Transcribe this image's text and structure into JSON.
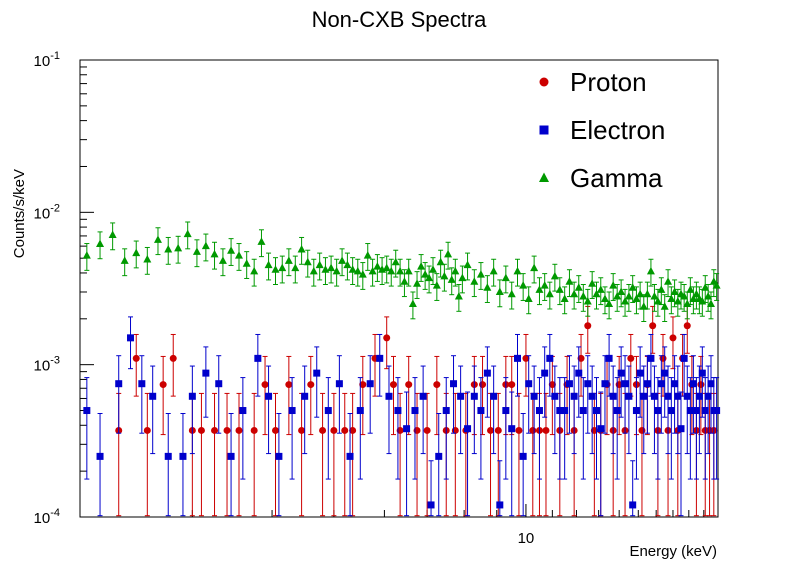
{
  "chart_data": {
    "type": "scatter",
    "title": "Non-CXB Spectra",
    "xlabel": "Energy (keV)",
    "ylabel": "Counts/s/keV",
    "xscale": "log",
    "yscale": "log",
    "xlim": [
      2.0,
      20.0
    ],
    "ylim": [
      0.0001,
      0.1
    ],
    "x_tick_labels": [
      "10"
    ],
    "y_tick_labels": [
      {
        "base": "10",
        "exp": "-4"
      },
      {
        "base": "10",
        "exp": "-3"
      },
      {
        "base": "10",
        "exp": "-2"
      },
      {
        "base": "10",
        "exp": "-1"
      }
    ],
    "legend_position": "top-right",
    "grid": false,
    "series": [
      {
        "name": "Proton",
        "color": "#cc0000",
        "marker": "circle",
        "x": [
          2.3,
          2.45,
          2.55,
          2.7,
          2.8,
          3.0,
          3.1,
          3.25,
          3.4,
          3.55,
          3.75,
          3.9,
          4.05,
          4.25,
          4.45,
          4.6,
          4.8,
          5.0,
          5.2,
          5.35,
          5.55,
          5.8,
          6.05,
          6.2,
          6.35,
          6.55,
          6.75,
          7.0,
          7.25,
          7.5,
          7.75,
          8.05,
          8.3,
          8.55,
          8.8,
          9.05,
          9.3,
          9.5,
          9.75,
          10.0,
          10.25,
          10.5,
          10.75,
          11.0,
          11.3,
          11.6,
          11.9,
          12.2,
          12.5,
          12.8,
          13.1,
          13.4,
          13.7,
          14.0,
          14.3,
          14.6,
          14.9,
          15.2,
          15.5,
          15.8,
          16.1,
          16.4,
          16.7,
          17.0,
          17.3,
          17.6,
          17.9,
          18.2,
          18.5,
          18.8,
          19.1,
          19.4,
          19.7
        ],
        "y": [
          0.00037,
          0.0011,
          0.00037,
          0.00074,
          0.0011,
          0.00037,
          0.00037,
          0.00037,
          0.00037,
          0.00037,
          0.00037,
          0.00074,
          0.00037,
          0.00074,
          0.00037,
          0.00074,
          0.00037,
          0.00037,
          0.00037,
          0.00037,
          0.00074,
          0.0011,
          0.0015,
          0.00074,
          0.00037,
          0.00074,
          0.00037,
          0.00037,
          0.00074,
          0.00037,
          0.00037,
          0.00037,
          0.00074,
          0.00074,
          0.00037,
          0.00037,
          0.00074,
          0.00074,
          0.00037,
          0.0011,
          0.00037,
          0.00037,
          0.00037,
          0.00074,
          0.00037,
          0.00074,
          0.00037,
          0.0011,
          0.0018,
          0.00037,
          0.00037,
          0.00074,
          0.00037,
          0.00074,
          0.00037,
          0.0011,
          0.00074,
          0.00037,
          0.00074,
          0.0018,
          0.00037,
          0.0011,
          0.00037,
          0.0015,
          0.00037,
          0.0011,
          0.0018,
          0.00074,
          0.00037,
          0.00074,
          0.00037,
          0.00037,
          0.00037
        ]
      },
      {
        "name": "Electron",
        "color": "#0000cc",
        "marker": "square",
        "x": [
          2.05,
          2.15,
          2.3,
          2.4,
          2.5,
          2.6,
          2.75,
          2.9,
          3.0,
          3.15,
          3.3,
          3.45,
          3.6,
          3.8,
          3.95,
          4.1,
          4.3,
          4.5,
          4.7,
          4.9,
          5.1,
          5.3,
          5.5,
          5.7,
          5.9,
          6.1,
          6.3,
          6.5,
          6.7,
          6.9,
          7.1,
          7.3,
          7.5,
          7.7,
          7.9,
          8.1,
          8.3,
          8.5,
          8.7,
          8.9,
          9.1,
          9.3,
          9.5,
          9.7,
          9.9,
          10.1,
          10.3,
          10.5,
          10.7,
          10.9,
          11.1,
          11.3,
          11.5,
          11.7,
          11.9,
          12.1,
          12.3,
          12.5,
          12.7,
          12.9,
          13.1,
          13.3,
          13.5,
          13.7,
          13.9,
          14.1,
          14.3,
          14.5,
          14.7,
          14.9,
          15.1,
          15.3,
          15.5,
          15.7,
          15.9,
          16.1,
          16.3,
          16.5,
          16.7,
          16.9,
          17.1,
          17.3,
          17.5,
          17.7,
          17.9,
          18.1,
          18.3,
          18.5,
          18.7,
          18.9,
          19.1,
          19.3,
          19.5,
          19.7,
          19.9
        ],
        "y": [
          0.0005,
          0.00025,
          0.00075,
          0.0015,
          0.00075,
          0.00062,
          0.00025,
          0.00025,
          0.00062,
          0.00088,
          0.00075,
          0.00025,
          0.0005,
          0.0011,
          0.00062,
          0.00025,
          0.0005,
          0.00062,
          0.00088,
          0.0005,
          0.00075,
          0.00025,
          0.0005,
          0.00075,
          0.0011,
          0.00062,
          0.0005,
          0.00038,
          0.0005,
          0.00062,
          0.00012,
          0.00025,
          0.0005,
          0.00075,
          0.00062,
          0.00038,
          0.00062,
          0.0005,
          0.00088,
          0.00062,
          0.00012,
          0.0005,
          0.00038,
          0.0011,
          0.00025,
          0.00075,
          0.00062,
          0.0005,
          0.00088,
          0.0011,
          0.00062,
          0.0005,
          0.0005,
          0.00075,
          0.00062,
          0.00088,
          0.0005,
          0.00075,
          0.00062,
          0.0005,
          0.00038,
          0.00075,
          0.0011,
          0.00062,
          0.0005,
          0.00088,
          0.00075,
          0.00062,
          0.00012,
          0.0005,
          0.00088,
          0.00062,
          0.00075,
          0.0011,
          0.00062,
          0.0005,
          0.00075,
          0.00088,
          0.00062,
          0.0005,
          0.00075,
          0.00062,
          0.00038,
          0.0011,
          0.00062,
          0.0005,
          0.00075,
          0.0005,
          0.00062,
          0.00088,
          0.0005,
          0.00062,
          0.00075,
          0.0005,
          0.0005
        ]
      },
      {
        "name": "Gamma",
        "color": "#009900",
        "marker": "triangle",
        "x": [
          2.05,
          2.15,
          2.25,
          2.35,
          2.45,
          2.55,
          2.65,
          2.75,
          2.85,
          2.95,
          3.05,
          3.15,
          3.25,
          3.35,
          3.45,
          3.55,
          3.65,
          3.75,
          3.85,
          3.95,
          4.05,
          4.15,
          4.25,
          4.35,
          4.45,
          4.55,
          4.65,
          4.75,
          4.85,
          4.95,
          5.05,
          5.15,
          5.25,
          5.35,
          5.45,
          5.55,
          5.65,
          5.75,
          5.85,
          5.95,
          6.05,
          6.15,
          6.25,
          6.35,
          6.45,
          6.55,
          6.65,
          6.75,
          6.85,
          6.95,
          7.05,
          7.15,
          7.25,
          7.35,
          7.45,
          7.55,
          7.65,
          7.75,
          7.85,
          7.95,
          8.1,
          8.3,
          8.5,
          8.7,
          8.9,
          9.1,
          9.3,
          9.5,
          9.7,
          9.9,
          10.1,
          10.3,
          10.5,
          10.7,
          10.9,
          11.1,
          11.3,
          11.5,
          11.7,
          11.9,
          12.1,
          12.3,
          12.5,
          12.7,
          12.9,
          13.1,
          13.3,
          13.5,
          13.7,
          13.9,
          14.1,
          14.3,
          14.5,
          14.7,
          14.9,
          15.1,
          15.3,
          15.5,
          15.7,
          15.9,
          16.1,
          16.3,
          16.5,
          16.7,
          16.9,
          17.1,
          17.3,
          17.5,
          17.7,
          17.9,
          18.1,
          18.3,
          18.5,
          18.7,
          18.9,
          19.1,
          19.3,
          19.5,
          19.7,
          19.9
        ],
        "y": [
          0.0052,
          0.0062,
          0.0071,
          0.0048,
          0.0054,
          0.0049,
          0.0066,
          0.0057,
          0.0058,
          0.0072,
          0.0055,
          0.006,
          0.0053,
          0.0048,
          0.0056,
          0.0052,
          0.0046,
          0.0041,
          0.0064,
          0.0045,
          0.0042,
          0.0043,
          0.0048,
          0.0043,
          0.0057,
          0.0047,
          0.0041,
          0.0045,
          0.0042,
          0.0043,
          0.0041,
          0.0048,
          0.0045,
          0.0042,
          0.0041,
          0.0039,
          0.0052,
          0.0041,
          0.0044,
          0.0042,
          0.0043,
          0.0041,
          0.0047,
          0.0041,
          0.0035,
          0.0041,
          0.0025,
          0.0034,
          0.0044,
          0.0039,
          0.0037,
          0.0042,
          0.0033,
          0.0047,
          0.0038,
          0.0053,
          0.0036,
          0.0041,
          0.0028,
          0.0037,
          0.0045,
          0.0035,
          0.0039,
          0.0032,
          0.0041,
          0.003,
          0.0037,
          0.0029,
          0.0041,
          0.0033,
          0.0027,
          0.0043,
          0.0031,
          0.0033,
          0.0029,
          0.0038,
          0.0031,
          0.0027,
          0.0035,
          0.0029,
          0.0032,
          0.0028,
          0.0026,
          0.0034,
          0.0029,
          0.0031,
          0.0027,
          0.0025,
          0.0033,
          0.0028,
          0.003,
          0.0026,
          0.0028,
          0.0032,
          0.0027,
          0.0029,
          0.0024,
          0.0029,
          0.0041,
          0.0028,
          0.0026,
          0.0031,
          0.0024,
          0.0035,
          0.0027,
          0.003,
          0.0026,
          0.0029,
          0.0028,
          0.0025,
          0.0031,
          0.0027,
          0.0029,
          0.0027,
          0.0026,
          0.0032,
          0.0028,
          0.0025,
          0.0035,
          0.0033
        ]
      }
    ]
  }
}
